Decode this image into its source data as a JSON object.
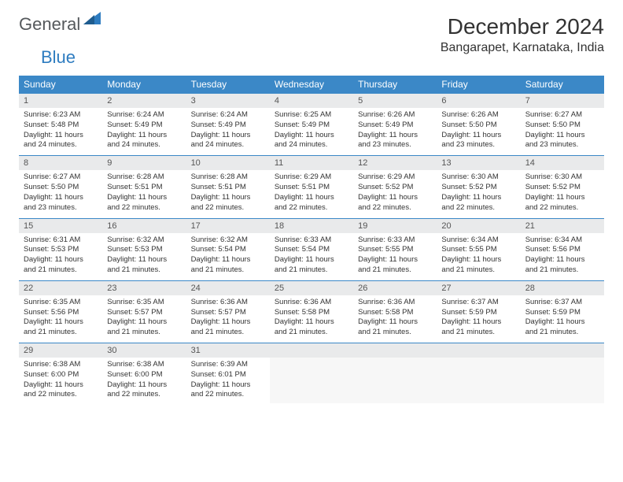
{
  "logo": {
    "text1": "General",
    "text2": "Blue"
  },
  "title": "December 2024",
  "location": "Bangarapet, Karnataka, India",
  "colors": {
    "header_bg": "#3b88c7",
    "header_text": "#ffffff",
    "daynum_bg": "#e9eaeb",
    "border": "#3b88c7",
    "logo_gray": "#55595c",
    "logo_blue": "#2e7cc0"
  },
  "weekdays": [
    "Sunday",
    "Monday",
    "Tuesday",
    "Wednesday",
    "Thursday",
    "Friday",
    "Saturday"
  ],
  "weeks": [
    [
      {
        "n": "1",
        "sr": "6:23 AM",
        "ss": "5:48 PM",
        "dh": "11",
        "dm": "24"
      },
      {
        "n": "2",
        "sr": "6:24 AM",
        "ss": "5:49 PM",
        "dh": "11",
        "dm": "24"
      },
      {
        "n": "3",
        "sr": "6:24 AM",
        "ss": "5:49 PM",
        "dh": "11",
        "dm": "24"
      },
      {
        "n": "4",
        "sr": "6:25 AM",
        "ss": "5:49 PM",
        "dh": "11",
        "dm": "24"
      },
      {
        "n": "5",
        "sr": "6:26 AM",
        "ss": "5:49 PM",
        "dh": "11",
        "dm": "23"
      },
      {
        "n": "6",
        "sr": "6:26 AM",
        "ss": "5:50 PM",
        "dh": "11",
        "dm": "23"
      },
      {
        "n": "7",
        "sr": "6:27 AM",
        "ss": "5:50 PM",
        "dh": "11",
        "dm": "23"
      }
    ],
    [
      {
        "n": "8",
        "sr": "6:27 AM",
        "ss": "5:50 PM",
        "dh": "11",
        "dm": "23"
      },
      {
        "n": "9",
        "sr": "6:28 AM",
        "ss": "5:51 PM",
        "dh": "11",
        "dm": "22"
      },
      {
        "n": "10",
        "sr": "6:28 AM",
        "ss": "5:51 PM",
        "dh": "11",
        "dm": "22"
      },
      {
        "n": "11",
        "sr": "6:29 AM",
        "ss": "5:51 PM",
        "dh": "11",
        "dm": "22"
      },
      {
        "n": "12",
        "sr": "6:29 AM",
        "ss": "5:52 PM",
        "dh": "11",
        "dm": "22"
      },
      {
        "n": "13",
        "sr": "6:30 AM",
        "ss": "5:52 PM",
        "dh": "11",
        "dm": "22"
      },
      {
        "n": "14",
        "sr": "6:30 AM",
        "ss": "5:52 PM",
        "dh": "11",
        "dm": "22"
      }
    ],
    [
      {
        "n": "15",
        "sr": "6:31 AM",
        "ss": "5:53 PM",
        "dh": "11",
        "dm": "21"
      },
      {
        "n": "16",
        "sr": "6:32 AM",
        "ss": "5:53 PM",
        "dh": "11",
        "dm": "21"
      },
      {
        "n": "17",
        "sr": "6:32 AM",
        "ss": "5:54 PM",
        "dh": "11",
        "dm": "21"
      },
      {
        "n": "18",
        "sr": "6:33 AM",
        "ss": "5:54 PM",
        "dh": "11",
        "dm": "21"
      },
      {
        "n": "19",
        "sr": "6:33 AM",
        "ss": "5:55 PM",
        "dh": "11",
        "dm": "21"
      },
      {
        "n": "20",
        "sr": "6:34 AM",
        "ss": "5:55 PM",
        "dh": "11",
        "dm": "21"
      },
      {
        "n": "21",
        "sr": "6:34 AM",
        "ss": "5:56 PM",
        "dh": "11",
        "dm": "21"
      }
    ],
    [
      {
        "n": "22",
        "sr": "6:35 AM",
        "ss": "5:56 PM",
        "dh": "11",
        "dm": "21"
      },
      {
        "n": "23",
        "sr": "6:35 AM",
        "ss": "5:57 PM",
        "dh": "11",
        "dm": "21"
      },
      {
        "n": "24",
        "sr": "6:36 AM",
        "ss": "5:57 PM",
        "dh": "11",
        "dm": "21"
      },
      {
        "n": "25",
        "sr": "6:36 AM",
        "ss": "5:58 PM",
        "dh": "11",
        "dm": "21"
      },
      {
        "n": "26",
        "sr": "6:36 AM",
        "ss": "5:58 PM",
        "dh": "11",
        "dm": "21"
      },
      {
        "n": "27",
        "sr": "6:37 AM",
        "ss": "5:59 PM",
        "dh": "11",
        "dm": "21"
      },
      {
        "n": "28",
        "sr": "6:37 AM",
        "ss": "5:59 PM",
        "dh": "11",
        "dm": "21"
      }
    ],
    [
      {
        "n": "29",
        "sr": "6:38 AM",
        "ss": "6:00 PM",
        "dh": "11",
        "dm": "22"
      },
      {
        "n": "30",
        "sr": "6:38 AM",
        "ss": "6:00 PM",
        "dh": "11",
        "dm": "22"
      },
      {
        "n": "31",
        "sr": "6:39 AM",
        "ss": "6:01 PM",
        "dh": "11",
        "dm": "22"
      },
      null,
      null,
      null,
      null
    ]
  ],
  "labels": {
    "sunrise": "Sunrise:",
    "sunset": "Sunset:",
    "daylight": "Daylight:",
    "hours": "hours",
    "and": "and",
    "minutes": "minutes."
  }
}
